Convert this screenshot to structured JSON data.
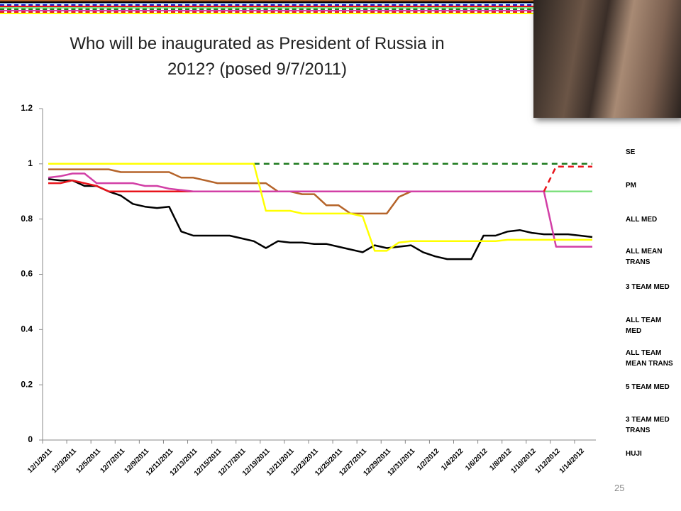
{
  "page_number": "25",
  "chart_data": {
    "type": "line",
    "title": "Who will be inaugurated as President of Russia in 2012? (posed 9/7/2011)",
    "categories": [
      "12/1/2011",
      null,
      "12/3/2011",
      null,
      "12/5/2011",
      null,
      "12/7/2011",
      null,
      "12/9/2011",
      null,
      "12/11/2011",
      null,
      "12/13/2011",
      null,
      "12/15/2011",
      null,
      "12/17/2011",
      null,
      "12/19/2011",
      null,
      "12/21/2011",
      null,
      "12/23/2011",
      null,
      "12/25/2011",
      null,
      "12/27/2011",
      null,
      "12/29/2011",
      null,
      "12/31/2011",
      null,
      "1/2/2012",
      null,
      "1/4/2012",
      null,
      "1/6/2012",
      null,
      "1/8/2012",
      null,
      "1/10/2012",
      null,
      "1/12/2012",
      null,
      "1/14/2012",
      null
    ],
    "ylim": [
      0,
      1.2
    ],
    "yticks": [
      0,
      0.2,
      0.4,
      0.6,
      0.8,
      1,
      1.2
    ],
    "grid": false,
    "legend": "right",
    "series": [
      {
        "name": "SE",
        "color": "#b5642a",
        "dashed": false,
        "values": [
          0.98,
          0.98,
          0.98,
          0.98,
          0.98,
          0.98,
          0.97,
          0.97,
          0.97,
          0.97,
          0.97,
          0.95,
          0.95,
          0.94,
          0.93,
          0.93,
          0.93,
          0.93,
          0.93,
          0.9,
          0.9,
          0.89,
          0.89,
          0.85,
          0.85,
          0.82,
          0.82,
          0.82,
          0.82,
          0.88,
          0.9,
          0.9,
          0.9,
          0.9,
          0.9,
          0.9,
          0.9,
          0.9,
          0.9,
          0.9,
          0.9,
          0.9,
          0.9,
          0.9,
          0.9,
          0.9
        ]
      },
      {
        "name": "PM",
        "color": "#000000",
        "dashed": false,
        "values": [
          0.945,
          0.94,
          0.94,
          0.92,
          0.92,
          0.9,
          0.885,
          0.855,
          0.845,
          0.84,
          0.845,
          0.755,
          0.74,
          0.74,
          0.74,
          0.74,
          0.73,
          0.72,
          0.695,
          0.72,
          0.715,
          0.715,
          0.71,
          0.71,
          0.7,
          0.69,
          0.68,
          0.705,
          0.695,
          0.7,
          0.705,
          0.68,
          0.665,
          0.655,
          0.655,
          0.655,
          0.74,
          0.74,
          0.755,
          0.76,
          0.75,
          0.745,
          0.745,
          0.745,
          0.74,
          0.735
        ]
      },
      {
        "name": "ALL MED",
        "color": "#8eb4e3",
        "dashed": false,
        "values": [
          null,
          null,
          null,
          null,
          null,
          null,
          null,
          null,
          null,
          null,
          null,
          null,
          null,
          null,
          null,
          null,
          null,
          null,
          0.9,
          0.9,
          0.9,
          0.9,
          0.9,
          0.9,
          0.9,
          0.9,
          0.9,
          0.9,
          0.9,
          0.9,
          0.9,
          0.9,
          0.9,
          0.9,
          0.9,
          0.9,
          0.9,
          0.9,
          0.9,
          0.9,
          0.9,
          0.9,
          0.9,
          0.9,
          0.9,
          0.9
        ]
      },
      {
        "name": "ALL MEAN TRANS",
        "color": "#1f1fcc",
        "dashed": true,
        "values": [
          null,
          null,
          null,
          null,
          null,
          null,
          null,
          null,
          null,
          null,
          null,
          null,
          null,
          null,
          null,
          null,
          null,
          null,
          0.9,
          0.9,
          0.9,
          0.9,
          0.9,
          0.9,
          0.9,
          0.9,
          0.9,
          0.9,
          0.9,
          0.9,
          0.9,
          0.9,
          0.9,
          0.9,
          0.9,
          0.9,
          0.9,
          0.9,
          0.9,
          0.9,
          0.9,
          0.9,
          0.9,
          0.9,
          0.9,
          0.9
        ]
      },
      {
        "name": "3 TEAM MED",
        "color": "#e8141b",
        "dashed": false,
        "values": [
          0.93,
          0.93,
          0.94,
          0.93,
          0.92,
          0.9,
          0.9,
          0.9,
          0.9,
          0.9,
          0.9,
          0.9,
          0.9,
          0.9,
          0.9,
          0.9,
          0.9,
          0.9,
          0.9,
          0.9,
          0.9,
          0.9,
          0.9,
          0.9,
          0.9,
          0.9,
          0.9,
          0.9,
          0.9,
          0.9,
          0.9,
          0.9,
          0.9,
          0.9,
          0.9,
          0.9,
          0.9,
          0.9,
          0.9,
          0.9,
          0.9,
          0.9,
          0.9,
          0.9,
          0.9,
          0.9
        ]
      },
      {
        "name": "ALL TEAM MED",
        "color": "#7ee07e",
        "dashed": false,
        "values": [
          null,
          null,
          null,
          null,
          null,
          null,
          null,
          null,
          null,
          null,
          null,
          null,
          null,
          null,
          null,
          null,
          null,
          null,
          null,
          null,
          null,
          null,
          null,
          null,
          null,
          null,
          null,
          null,
          null,
          null,
          null,
          null,
          null,
          null,
          null,
          null,
          null,
          null,
          null,
          null,
          null,
          0.9,
          0.9,
          0.9,
          0.9,
          0.9
        ]
      },
      {
        "name": "ALL TEAM MEAN TRANS",
        "color": "#1d7a1d",
        "dashed": true,
        "values": [
          null,
          null,
          null,
          null,
          null,
          null,
          null,
          null,
          null,
          null,
          null,
          null,
          null,
          null,
          null,
          null,
          null,
          1,
          1,
          1,
          1,
          1,
          1,
          1,
          1,
          1,
          1,
          1,
          1,
          1,
          1,
          1,
          1,
          1,
          1,
          1,
          1,
          1,
          1,
          1,
          1,
          1,
          1,
          1,
          1,
          1
        ]
      },
      {
        "name": "5 TEAM MED",
        "color": "#d23fa6",
        "dashed": false,
        "values": [
          0.95,
          0.955,
          0.965,
          0.965,
          0.93,
          0.93,
          0.93,
          0.93,
          0.92,
          0.92,
          0.91,
          0.905,
          0.9,
          0.9,
          0.9,
          0.9,
          0.9,
          0.9,
          0.9,
          0.9,
          0.9,
          0.9,
          0.9,
          0.9,
          0.9,
          0.9,
          0.9,
          0.9,
          0.9,
          0.9,
          0.9,
          0.9,
          0.9,
          0.9,
          0.9,
          0.9,
          0.9,
          0.9,
          0.9,
          0.9,
          0.9,
          0.9,
          0.7,
          0.7,
          0.7,
          0.7
        ]
      },
      {
        "name": "3 TEAM MED TRANS",
        "color": "#e8141b",
        "dashed": true,
        "values": [
          null,
          null,
          null,
          null,
          null,
          null,
          null,
          null,
          null,
          null,
          null,
          null,
          null,
          null,
          null,
          null,
          null,
          null,
          null,
          null,
          null,
          null,
          null,
          null,
          null,
          null,
          null,
          null,
          null,
          null,
          null,
          null,
          null,
          null,
          null,
          null,
          null,
          null,
          null,
          null,
          null,
          0.9,
          0.99,
          0.99,
          0.99,
          0.99
        ]
      },
      {
        "name": "HUJI",
        "color": "#ffff00",
        "dashed": false,
        "values": [
          1,
          1,
          1,
          1,
          1,
          1,
          1,
          1,
          1,
          1,
          1,
          1,
          1,
          1,
          1,
          1,
          1,
          1,
          0.83,
          0.83,
          0.83,
          0.82,
          0.82,
          0.82,
          0.82,
          0.82,
          0.81,
          0.685,
          0.685,
          0.715,
          0.72,
          0.72,
          0.72,
          0.72,
          0.72,
          0.72,
          0.72,
          0.72,
          0.725,
          0.725,
          0.725,
          0.725,
          0.725,
          0.725,
          0.725,
          0.725
        ]
      }
    ]
  }
}
